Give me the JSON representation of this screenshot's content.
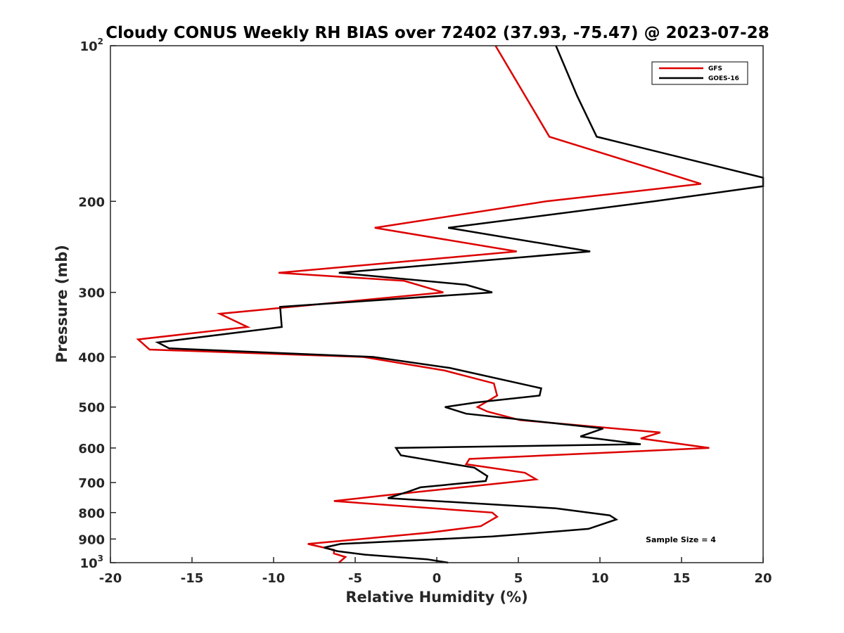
{
  "chart_data": {
    "type": "line",
    "title": "Cloudy CONUS Weekly RH BIAS over 72402 (37.93, -75.47) @ 2023-07-28",
    "xlabel": "Relative Humidity (%)",
    "ylabel": "Pressure (mb)",
    "xlim": [
      -20,
      20
    ],
    "ylim": [
      100,
      1000
    ],
    "y_scale": "log",
    "y_reversed": true,
    "x_ticks": [
      "-20",
      "-15",
      "-10",
      "-5",
      "0",
      "5",
      "10",
      "15",
      "20"
    ],
    "y_ticks": [
      {
        "value": 100,
        "base": "10",
        "exp": "2"
      },
      {
        "value": 200,
        "label": "200"
      },
      {
        "value": 300,
        "label": "300"
      },
      {
        "value": 400,
        "label": "400"
      },
      {
        "value": 500,
        "label": "500"
      },
      {
        "value": 600,
        "label": "600"
      },
      {
        "value": 700,
        "label": "700"
      },
      {
        "value": 800,
        "label": "800"
      },
      {
        "value": 900,
        "label": "900"
      },
      {
        "value": 1000,
        "base": "10",
        "exp": "3"
      }
    ],
    "grid": false,
    "legend_position": "top-right",
    "series": [
      {
        "name": "GFS",
        "color": "#dd0000",
        "points": [
          [
            3.6,
            100
          ],
          [
            6.9,
            150
          ],
          [
            16.2,
            185
          ],
          [
            6.7,
            200
          ],
          [
            -3.8,
            225
          ],
          [
            4.9,
            250
          ],
          [
            -9.7,
            275
          ],
          [
            -2.0,
            285
          ],
          [
            0.4,
            300
          ],
          [
            -13.3,
            330
          ],
          [
            -11.6,
            350
          ],
          [
            -18.3,
            370
          ],
          [
            -17.6,
            387
          ],
          [
            -4.5,
            400
          ],
          [
            0.5,
            425
          ],
          [
            3.5,
            450
          ],
          [
            3.7,
            475
          ],
          [
            2.5,
            500
          ],
          [
            3.1,
            510
          ],
          [
            5.1,
            530
          ],
          [
            13.7,
            560
          ],
          [
            12.5,
            575
          ],
          [
            16.7,
            600
          ],
          [
            2.0,
            630
          ],
          [
            1.8,
            645
          ],
          [
            5.4,
            670
          ],
          [
            6.1,
            690
          ],
          [
            4.3,
            700
          ],
          [
            -3.0,
            740
          ],
          [
            -6.3,
            760
          ],
          [
            3.4,
            800
          ],
          [
            3.7,
            815
          ],
          [
            2.7,
            850
          ],
          [
            -0.5,
            875
          ],
          [
            -7.9,
            920
          ],
          [
            -6.3,
            945
          ],
          [
            -6.3,
            960
          ],
          [
            -5.6,
            975
          ],
          [
            -6.0,
            1000
          ]
        ]
      },
      {
        "name": "GOES-16",
        "color": "#000000",
        "points": [
          [
            7.3,
            100
          ],
          [
            8.6,
            125
          ],
          [
            9.8,
            150
          ],
          [
            20.0,
            180
          ],
          [
            20.0,
            187
          ],
          [
            13.3,
            200
          ],
          [
            0.7,
            225
          ],
          [
            9.4,
            250
          ],
          [
            -6.0,
            275
          ],
          [
            1.8,
            290
          ],
          [
            3.4,
            300
          ],
          [
            -9.6,
            320
          ],
          [
            -9.5,
            350
          ],
          [
            -17.1,
            375
          ],
          [
            -16.4,
            385
          ],
          [
            -3.9,
            400
          ],
          [
            0.8,
            420
          ],
          [
            6.4,
            460
          ],
          [
            6.3,
            475
          ],
          [
            2.4,
            490
          ],
          [
            0.5,
            500
          ],
          [
            1.8,
            515
          ],
          [
            10.2,
            550
          ],
          [
            8.8,
            570
          ],
          [
            12.5,
            590
          ],
          [
            -2.5,
            600
          ],
          [
            -2.2,
            620
          ],
          [
            2.3,
            655
          ],
          [
            3.1,
            680
          ],
          [
            3.0,
            695
          ],
          [
            -1.0,
            715
          ],
          [
            -1.8,
            730
          ],
          [
            -3.0,
            750
          ],
          [
            7.3,
            785
          ],
          [
            10.6,
            810
          ],
          [
            11.0,
            825
          ],
          [
            9.3,
            860
          ],
          [
            7.4,
            870
          ],
          [
            3.4,
            890
          ],
          [
            -5.9,
            920
          ],
          [
            -6.9,
            935
          ],
          [
            -6.1,
            950
          ],
          [
            -4.4,
            965
          ],
          [
            -0.6,
            985
          ],
          [
            0.7,
            1000
          ]
        ]
      }
    ],
    "annotation": "Sample Size = 4"
  }
}
